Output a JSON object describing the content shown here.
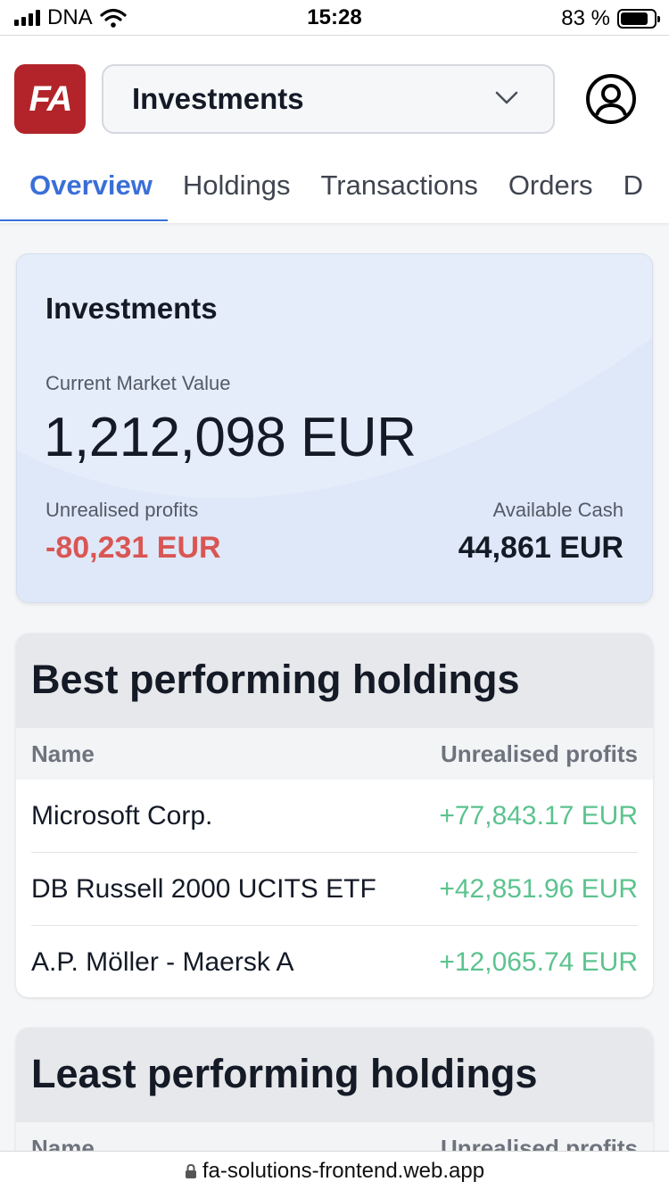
{
  "status_bar": {
    "carrier": "DNA",
    "time": "15:28",
    "battery_percent": "83 %",
    "battery_level": 0.83
  },
  "header": {
    "logo_text": "FA",
    "portfolio_select": {
      "label": "Investments",
      "icon": "chevron-down-icon"
    },
    "profile_icon": "user-circle-icon"
  },
  "tabs": [
    {
      "label": "Overview",
      "active": true
    },
    {
      "label": "Holdings",
      "active": false
    },
    {
      "label": "Transactions",
      "active": false
    },
    {
      "label": "Orders",
      "active": false
    },
    {
      "label": "D",
      "active": false
    }
  ],
  "investments_card": {
    "title": "Investments",
    "current_market_value_label": "Current Market Value",
    "current_market_value": "1,212,098 EUR",
    "unrealised_profits_label": "Unrealised profits",
    "unrealised_profits": "-80,231 EUR",
    "available_cash_label": "Available Cash",
    "available_cash": "44,861 EUR"
  },
  "best_holdings": {
    "title": "Best performing holdings",
    "columns": [
      "Name",
      "Unrealised profits"
    ],
    "rows": [
      {
        "name": "Microsoft Corp.",
        "value": "+77,843.17 EUR"
      },
      {
        "name": "DB Russell 2000 UCITS ETF",
        "value": "+42,851.96 EUR"
      },
      {
        "name": "A.P. Möller - Maersk A",
        "value": "+12,065.74 EUR"
      }
    ]
  },
  "least_holdings": {
    "title": "Least performing holdings",
    "columns": [
      "Name",
      "Unrealised profits"
    ]
  },
  "url_bar": {
    "url": "fa-solutions-frontend.web.app"
  },
  "colors": {
    "accent": "#3a6fd8",
    "negative": "#d95654",
    "positive": "#5cc38f",
    "brand": "#b3242a",
    "card_background": "#e5edfb"
  }
}
